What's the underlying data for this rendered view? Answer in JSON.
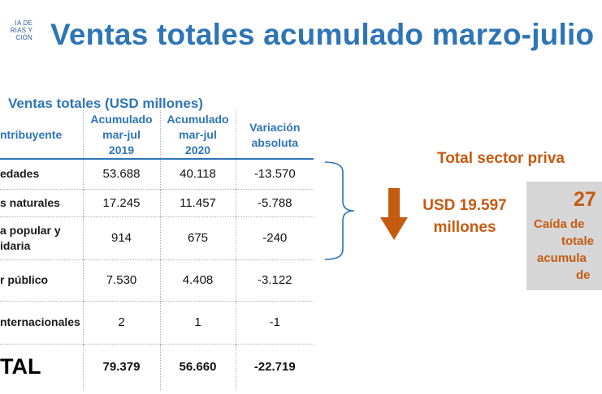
{
  "logo": {
    "lines": [
      "IA DE",
      "RIAS Y",
      "CIÓN"
    ]
  },
  "title": "Ventas totales acumulado marzo-julio",
  "table": {
    "caption": "Ventas totales (USD millones)",
    "headers": {
      "category": "ntribuyente",
      "col1": [
        "Acumulado",
        "mar-jul",
        "2019"
      ],
      "col2": [
        "Acumulado",
        "mar-jul",
        "2020"
      ],
      "col3": [
        "Variación",
        "absoluta"
      ]
    },
    "rows": [
      {
        "category": [
          "edades"
        ],
        "v2019": "53.688",
        "v2020": "40.118",
        "variation": "-13.570"
      },
      {
        "category": [
          "s naturales"
        ],
        "v2019": "17.245",
        "v2020": "11.457",
        "variation": "-5.788"
      },
      {
        "category": [
          "a popular y",
          "idaria"
        ],
        "v2019": "914",
        "v2020": "675",
        "variation": "-240"
      },
      {
        "category": [
          "r público"
        ],
        "v2019": "7.530",
        "v2020": "4.408",
        "variation": "-3.122"
      },
      {
        "category": [
          "nternacionales"
        ],
        "v2019": "2",
        "v2020": "1",
        "variation": "-1"
      }
    ],
    "total": {
      "category": "TAL",
      "v2019": "79.379",
      "v2020": "56.660",
      "variation": "-22.719"
    }
  },
  "summary": {
    "amount": [
      "USD 19.597",
      "millones"
    ],
    "private_title": "Total sector priva",
    "percent": "27",
    "box_lines": [
      "Caída de",
      "totale",
      "acumula",
      "de"
    ]
  },
  "colors": {
    "title_blue": "#2e75b6",
    "accent_orange": "#c55a11",
    "box_gray": "#d6d6d6"
  },
  "icons": {
    "arrow": "down-arrow-icon",
    "brace": "right-brace-icon"
  }
}
